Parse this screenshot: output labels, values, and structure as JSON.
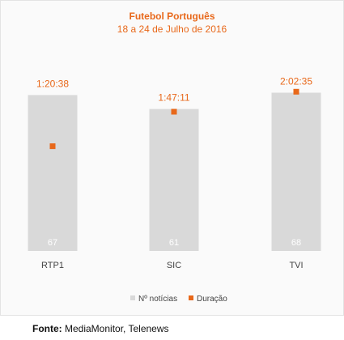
{
  "chart_data": {
    "type": "bar",
    "title": "Futebol Português",
    "subtitle": "18 a 24 de Julho de 2016",
    "categories": [
      "RTP1",
      "SIC",
      "TVI"
    ],
    "series": [
      {
        "name": "Nº notícias",
        "type": "bar",
        "color": "#d9d9d9",
        "values": [
          67,
          61,
          68
        ],
        "labels": [
          "67",
          "61",
          "68"
        ]
      },
      {
        "name": "Duração",
        "type": "scatter",
        "color": "#e8681a",
        "values_seconds": [
          4838,
          6431,
          7355
        ],
        "labels": [
          "1:20:38",
          "1:47:11",
          "2:02:35"
        ]
      }
    ],
    "bar_ylim": [
      0,
      80
    ],
    "duration_ylim": [
      0,
      8600
    ],
    "grid": false,
    "legend_position": "bottom"
  },
  "source": {
    "label": "Fonte:",
    "text": "MediaMonitor, Telenews"
  }
}
